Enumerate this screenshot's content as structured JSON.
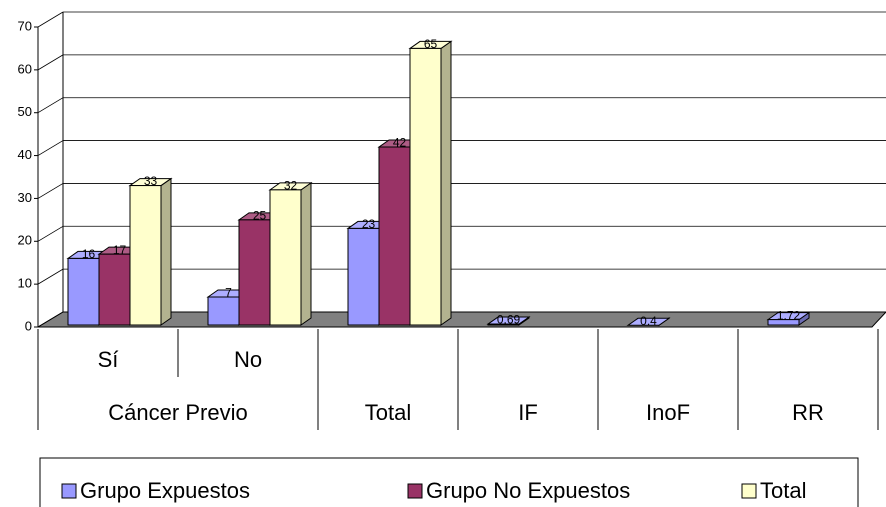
{
  "chart_data": {
    "type": "bar3d",
    "categories": [
      "Sí",
      "No",
      null,
      null,
      null,
      null
    ],
    "category_groups": [
      {
        "label": "Cáncer Previo",
        "size": 2
      },
      {
        "label": "Total",
        "size": 1
      },
      {
        "label": "IF",
        "size": 1
      },
      {
        "label": "InoF",
        "size": 1
      },
      {
        "label": "RR",
        "size": 1
      }
    ],
    "series": [
      {
        "name": "Grupo Expuestos",
        "color": "#9999ff",
        "values": [
          16,
          7,
          23,
          0.69,
          0.4,
          1.72
        ]
      },
      {
        "name": "Grupo No Expuestos",
        "color": "#993366",
        "values": [
          17,
          25,
          42,
          null,
          null,
          null
        ]
      },
      {
        "name": "Total",
        "color": "#ffffcc",
        "values": [
          33,
          32,
          65,
          null,
          null,
          null
        ]
      }
    ],
    "ylim": [
      0,
      70
    ],
    "yticks": [
      0,
      10,
      20,
      30,
      40,
      50,
      60,
      70
    ],
    "grid": true,
    "legend": "bottom"
  }
}
